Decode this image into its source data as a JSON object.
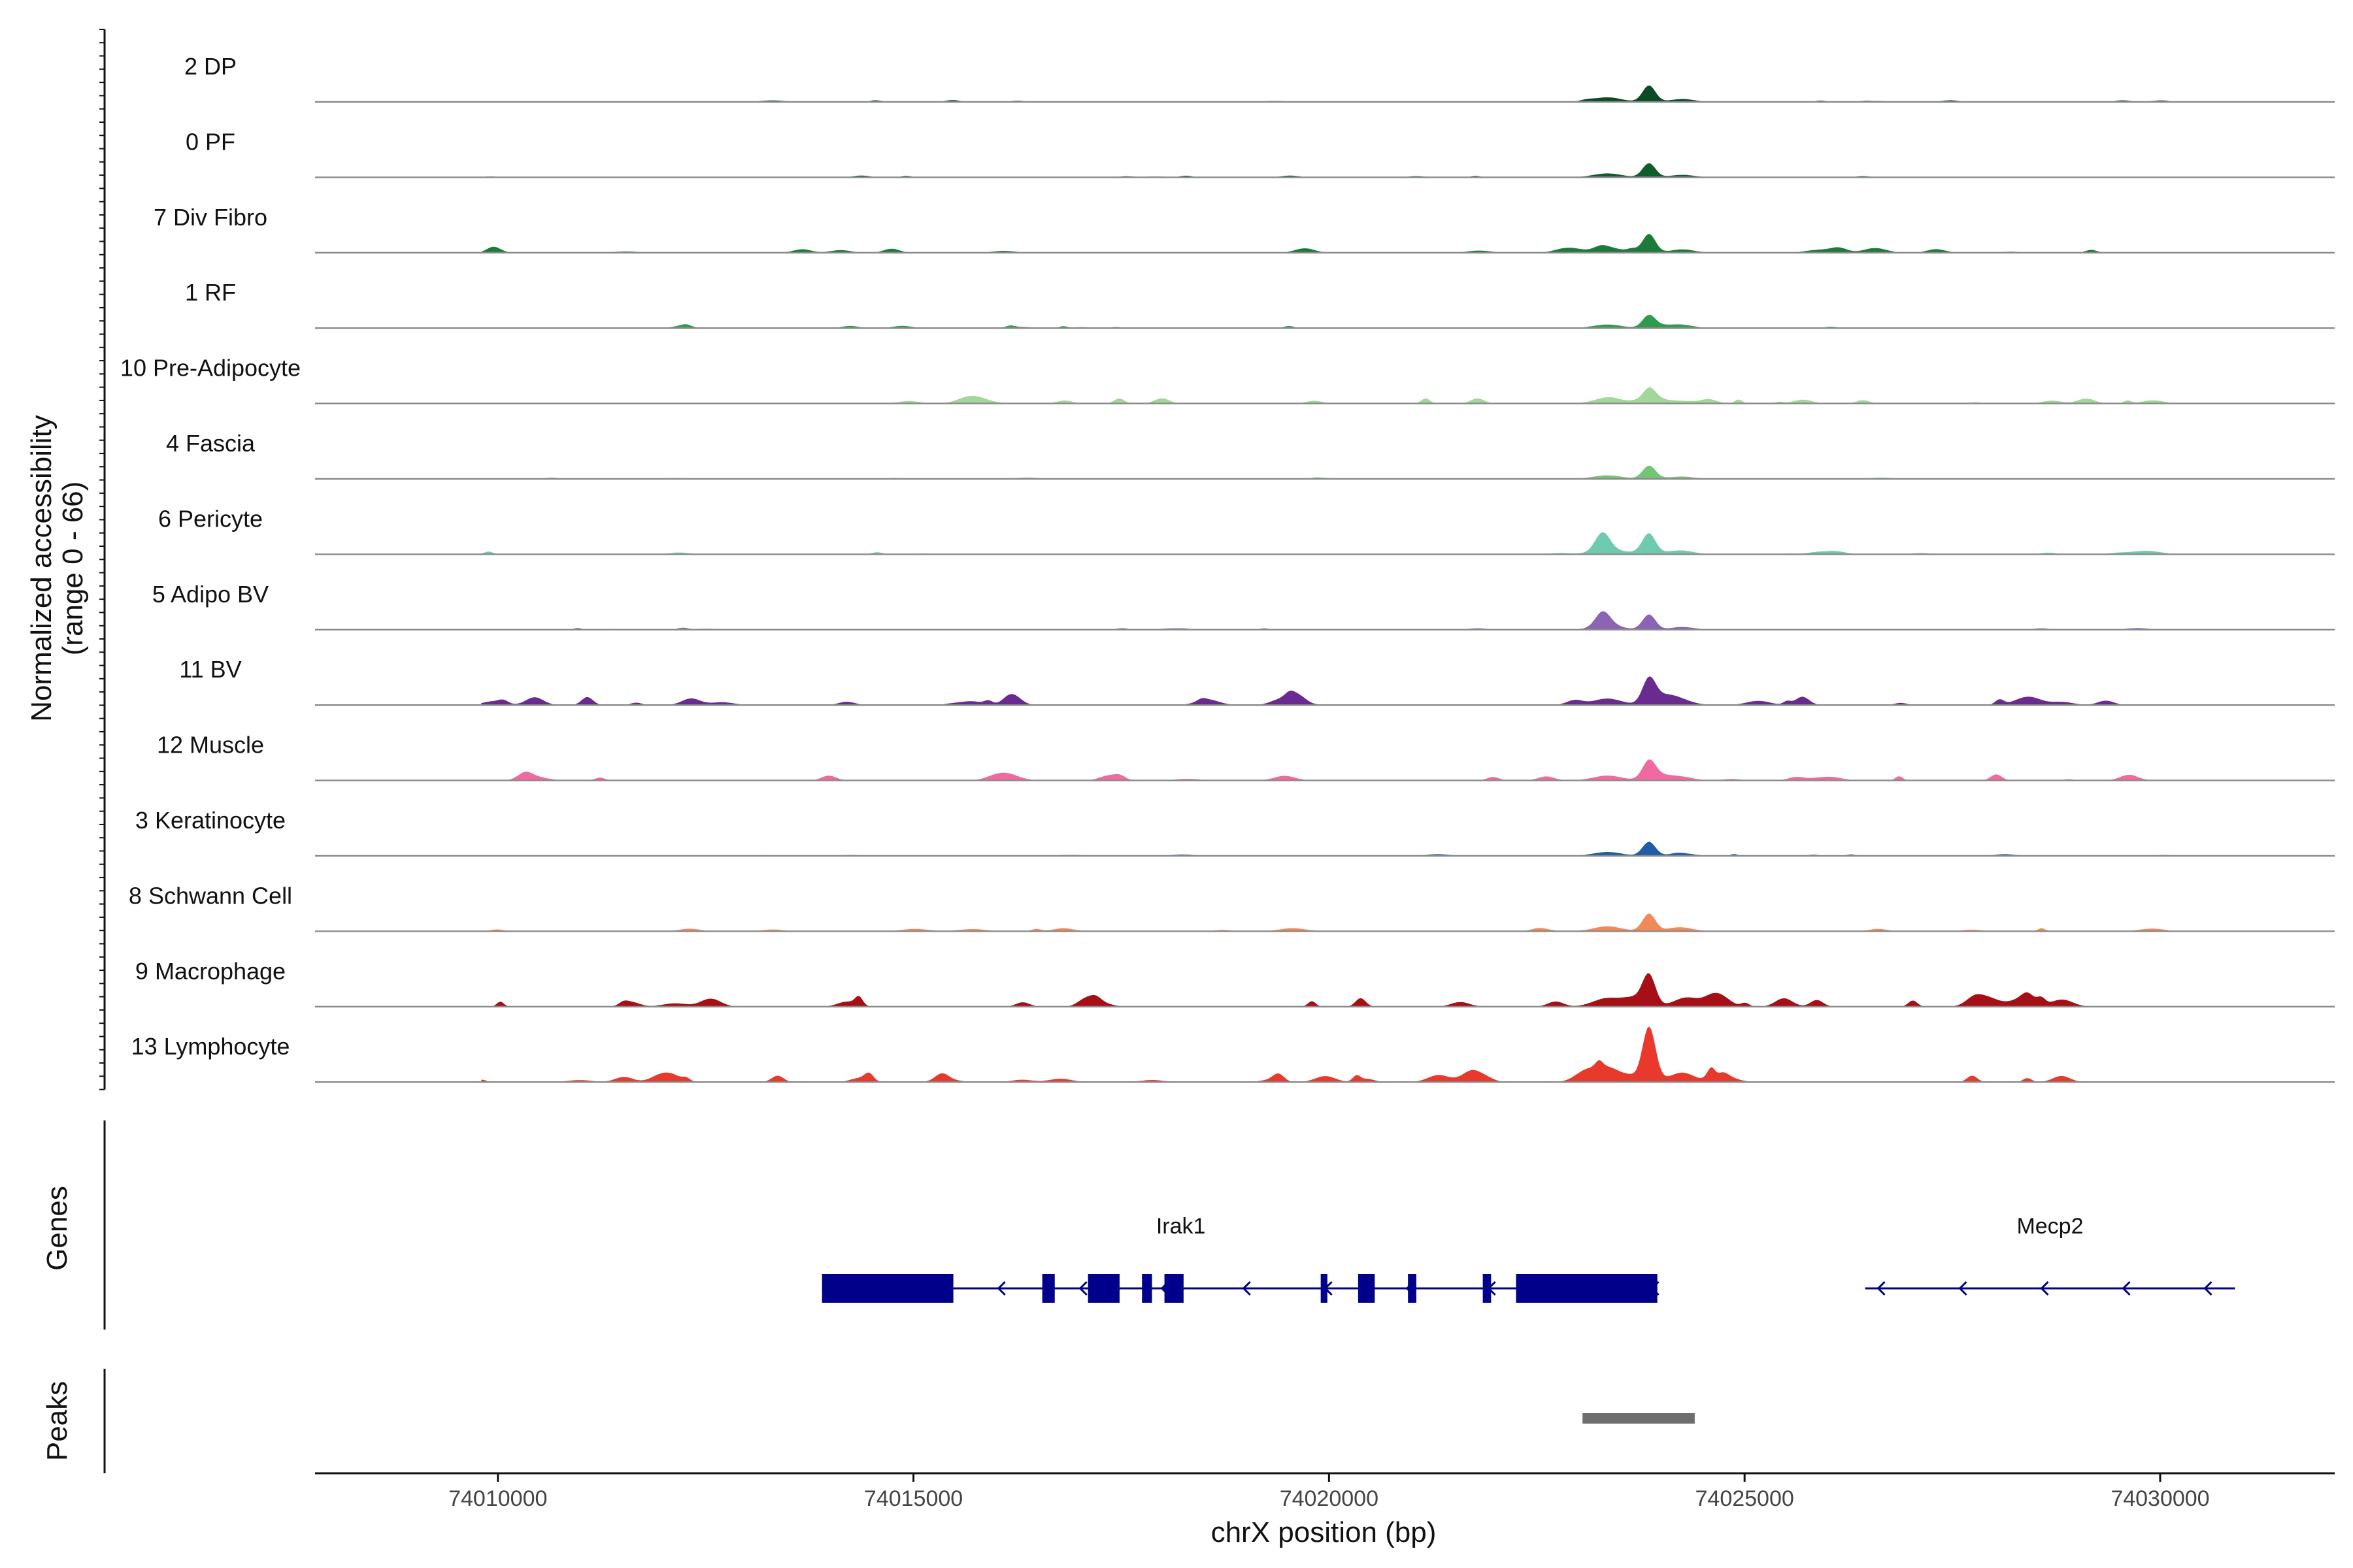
{
  "chart_data": {
    "type": "area",
    "ylabel_line1": "Normalized accessibility",
    "ylabel_line2": "(range 0 - 66)",
    "xlabel": "chrX position (bp)",
    "xlim": [
      74007800,
      74032100
    ],
    "ylim": [
      0,
      66
    ],
    "x_ticks": [
      74010000,
      74015000,
      74020000,
      74025000,
      74030000
    ],
    "x_tick_labels": [
      "74010000",
      "74015000",
      "74020000",
      "74025000",
      "74030000"
    ],
    "tracks": [
      {
        "name": "2 DP",
        "color": "#0b4a26",
        "peak_height": 14,
        "noise": 0.5
      },
      {
        "name": "0 PF",
        "color": "#0e5e2d",
        "peak_height": 12,
        "noise": 0.5
      },
      {
        "name": "7 Div Fibro",
        "color": "#1d7a3c",
        "peak_height": 16,
        "noise": 1.2
      },
      {
        "name": "1 RF",
        "color": "#2f9b4e",
        "peak_height": 11,
        "noise": 0.6
      },
      {
        "name": "10 Pre-Adipocyte",
        "color": "#a3d69a",
        "peak_height": 12,
        "noise": 1.4
      },
      {
        "name": "4 Fascia",
        "color": "#74c476",
        "peak_height": 11,
        "noise": 0.4
      },
      {
        "name": "6 Pericyte",
        "color": "#6fcab0",
        "peak_height": 17,
        "noise": 0.7
      },
      {
        "name": "5 Adipo BV",
        "color": "#8c64b4",
        "peak_height": 13,
        "noise": 0.5
      },
      {
        "name": "11 BV",
        "color": "#6a2a90",
        "peak_height": 20,
        "noise": 2.2
      },
      {
        "name": "12 Muscle",
        "color": "#f06aa0",
        "peak_height": 15,
        "noise": 1.6
      },
      {
        "name": "3 Keratinocyte",
        "color": "#1f5da8",
        "peak_height": 12,
        "noise": 0.5
      },
      {
        "name": "8 Schwann Cell",
        "color": "#f08a58",
        "peak_height": 15,
        "noise": 0.8
      },
      {
        "name": "9 Macrophage",
        "color": "#a50f15",
        "peak_height": 26,
        "noise": 2.2
      },
      {
        "name": "13 Lymphocyte",
        "color": "#e8392c",
        "peak_height": 45,
        "noise": 2.4
      }
    ],
    "gene_track_label": "Genes",
    "genes": [
      {
        "name": "Irak1",
        "strand": "-",
        "start": 74013900,
        "end": 74023950,
        "exons": [
          [
            74013900,
            74015480
          ],
          [
            74016550,
            74016700
          ],
          [
            74017100,
            74017480
          ],
          [
            74017750,
            74017870
          ],
          [
            74018020,
            74018250
          ],
          [
            74019900,
            74019980
          ],
          [
            74020350,
            74020550
          ],
          [
            74020950,
            74021050
          ],
          [
            74021850,
            74021950
          ],
          [
            74022250,
            74023950
          ]
        ],
        "color": "#00008b"
      },
      {
        "name": "Mecp2",
        "strand": "-",
        "start": 74026450,
        "end": 74030900,
        "exons": [],
        "color": "#00008b"
      }
    ],
    "peak_track_label": "Peaks",
    "peaks": [
      {
        "start": 74023050,
        "end": 74024400,
        "color": "#6e6e6e"
      }
    ]
  }
}
